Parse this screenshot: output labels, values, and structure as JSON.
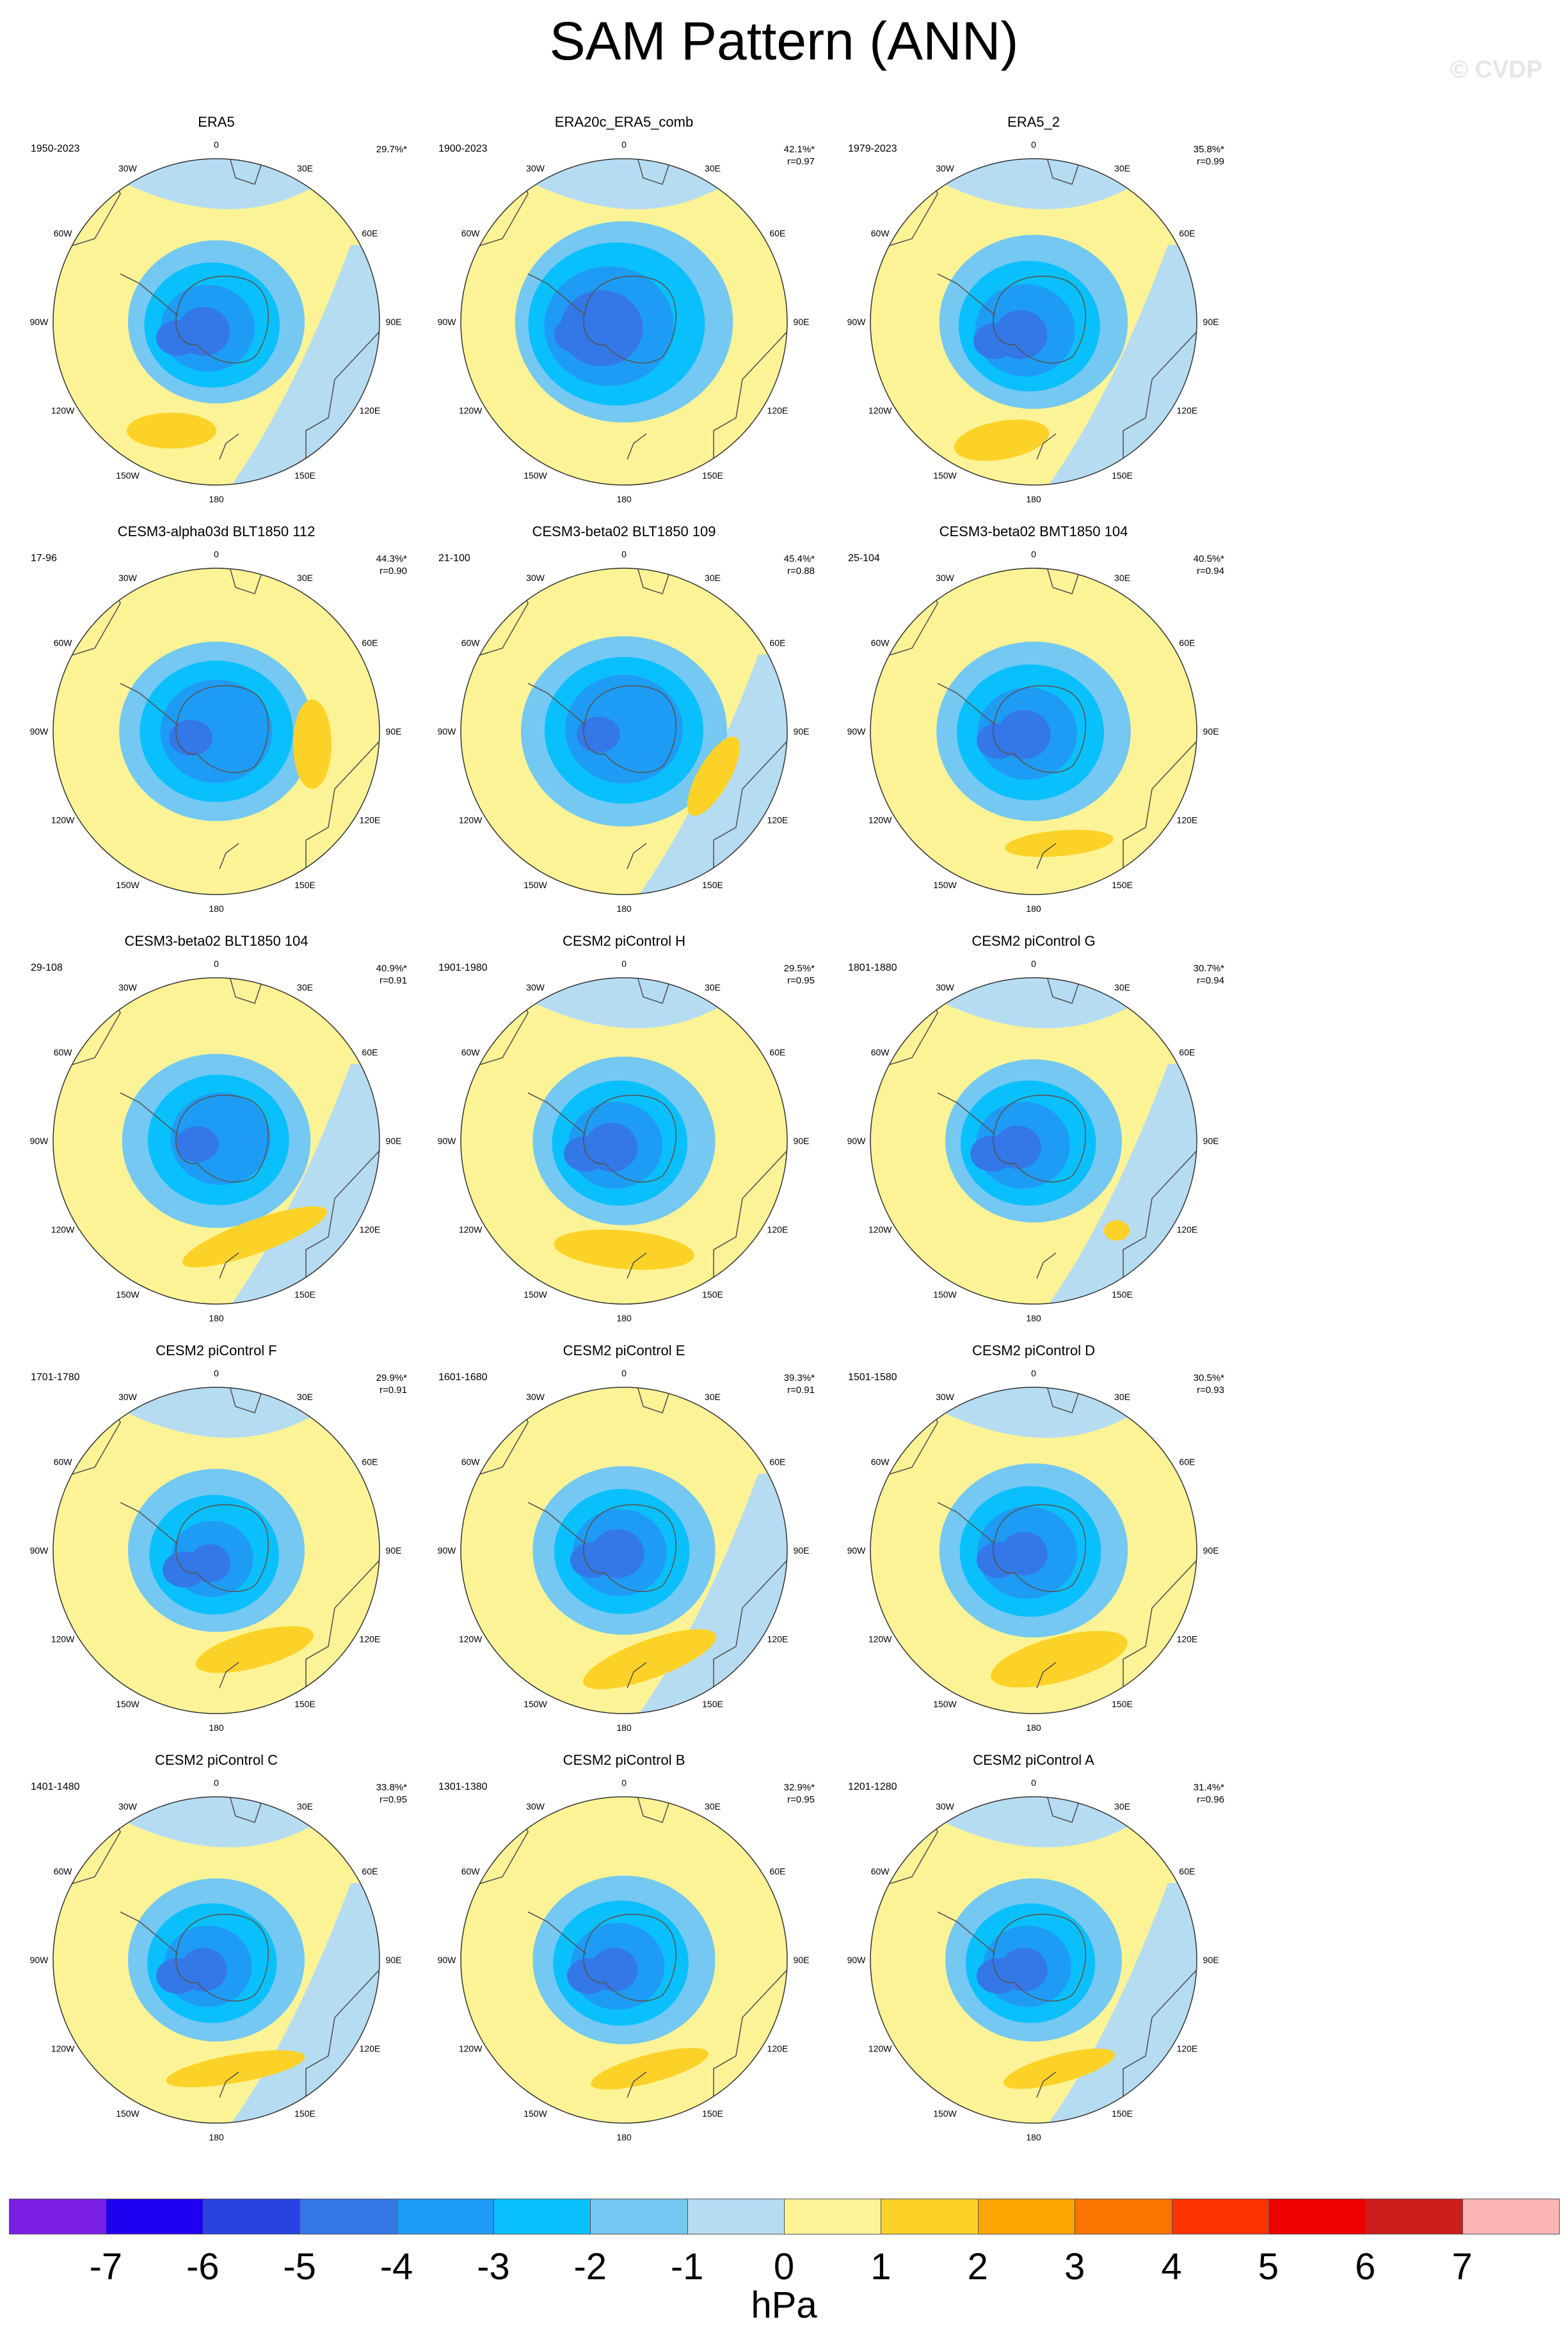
{
  "title": "SAM Pattern (ANN)",
  "watermark": "© CVDP",
  "units": "hPa",
  "colorbar": {
    "ticks": [
      "-7",
      "-6",
      "-5",
      "-4",
      "-3",
      "-2",
      "-1",
      "0",
      "1",
      "2",
      "3",
      "4",
      "5",
      "6",
      "7"
    ],
    "colors": [
      "#7b1fe6",
      "#2000f0",
      "#2844e0",
      "#3478e8",
      "#1e9cf5",
      "#0ac0fc",
      "#74c8f2",
      "#b6dcf2",
      "#fcf396",
      "#fcd228",
      "#fca400",
      "#fc7400",
      "#fc3400",
      "#ec0000",
      "#cc1c1c",
      "#fcb4b4"
    ]
  },
  "lon_labels": [
    "0",
    "30E",
    "60E",
    "90E",
    "120E",
    "150E",
    "180",
    "150W",
    "120W",
    "90W",
    "60W",
    "30W"
  ],
  "panels": [
    {
      "title": "ERA5",
      "period": "1950-2023",
      "pct": "29.7%*",
      "r": ""
    },
    {
      "title": "ERA20c_ERA5_comb",
      "period": "1900-2023",
      "pct": "42.1%*",
      "r": "r=0.97"
    },
    {
      "title": "ERA5_2",
      "period": "1979-2023",
      "pct": "35.8%*",
      "r": "r=0.99"
    },
    {
      "title": "CESM3-alpha03d BLT1850 112",
      "period": "17-96",
      "pct": "44.3%*",
      "r": "r=0.90"
    },
    {
      "title": "CESM3-beta02 BLT1850 109",
      "period": "21-100",
      "pct": "45.4%*",
      "r": "r=0.88"
    },
    {
      "title": "CESM3-beta02 BMT1850 104",
      "period": "25-104",
      "pct": "40.5%*",
      "r": "r=0.94"
    },
    {
      "title": "CESM3-beta02 BLT1850 104",
      "period": "29-108",
      "pct": "40.9%*",
      "r": "r=0.91"
    },
    {
      "title": "CESM2 piControl H",
      "period": "1901-1980",
      "pct": "29.5%*",
      "r": "r=0.95"
    },
    {
      "title": "CESM2 piControl G",
      "period": "1801-1880",
      "pct": "30.7%*",
      "r": "r=0.94"
    },
    {
      "title": "CESM2 piControl F",
      "period": "1701-1780",
      "pct": "29.9%*",
      "r": "r=0.91"
    },
    {
      "title": "CESM2 piControl E",
      "period": "1601-1680",
      "pct": "39.3%*",
      "r": "r=0.91"
    },
    {
      "title": "CESM2 piControl D",
      "period": "1501-1580",
      "pct": "30.5%*",
      "r": "r=0.93"
    },
    {
      "title": "CESM2 piControl C",
      "period": "1401-1480",
      "pct": "33.8%*",
      "r": "r=0.95"
    },
    {
      "title": "CESM2 piControl B",
      "period": "1301-1380",
      "pct": "32.9%*",
      "r": "r=0.95"
    },
    {
      "title": "CESM2 piControl A",
      "period": "1201-1280",
      "pct": "31.4%*",
      "r": "r=0.96"
    }
  ]
}
